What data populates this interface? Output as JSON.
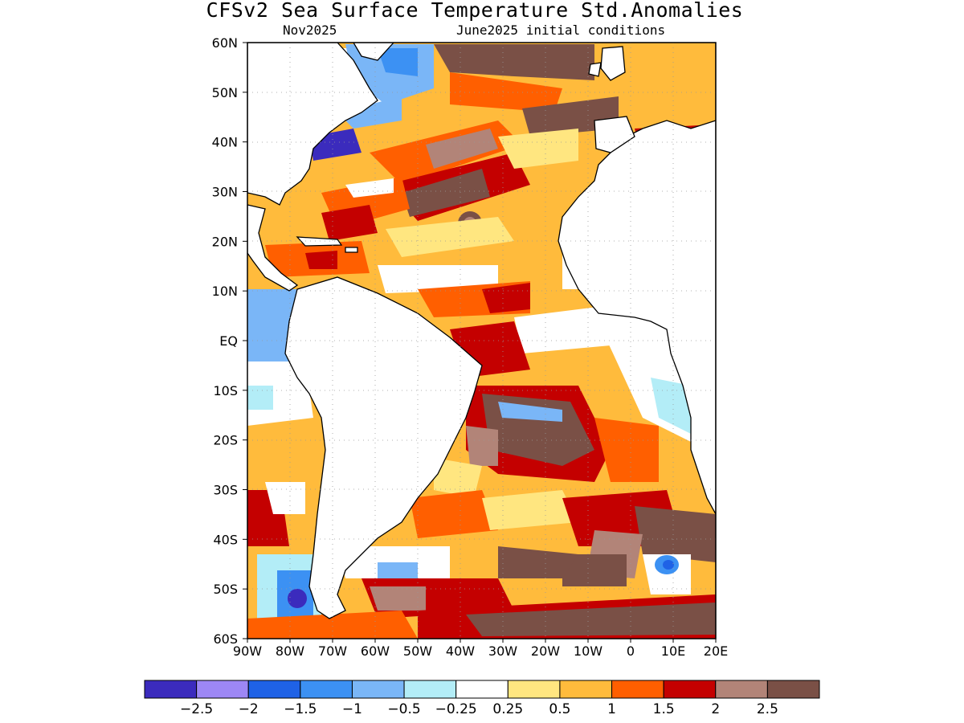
{
  "header": {
    "title": "CFSv2 Sea Surface Temperature Std.Anomalies",
    "valid_month": "Nov2025",
    "init": "June2025 initial conditions"
  },
  "map": {
    "lat_ticks": [
      "60N",
      "50N",
      "40N",
      "30N",
      "20N",
      "10N",
      "EQ",
      "10S",
      "20S",
      "30S",
      "40S",
      "50S",
      "60S"
    ],
    "lon_ticks": [
      "90W",
      "80W",
      "70W",
      "60W",
      "50W",
      "40W",
      "30W",
      "20W",
      "10W",
      "0",
      "10E",
      "20E"
    ],
    "lat_range": [
      -60,
      60
    ],
    "lon_range": [
      -90,
      20
    ],
    "grid": "dotted",
    "land_color": "#ffffff"
  },
  "colorbar": {
    "colors": [
      "#3b2bbd",
      "#9d87f5",
      "#1f62e6",
      "#3c91f3",
      "#7ab6f7",
      "#b3edf7",
      "#ffffff",
      "#ffe680",
      "#ffbb3c",
      "#ff5f00",
      "#c40000",
      "#b28478",
      "#7a5046"
    ],
    "labels": [
      "−2.5",
      "−2",
      "−1.5",
      "−1",
      "−0.5",
      "−0.25",
      "0.25",
      "0.5",
      "1",
      "1.5",
      "2",
      "2.5"
    ]
  }
}
